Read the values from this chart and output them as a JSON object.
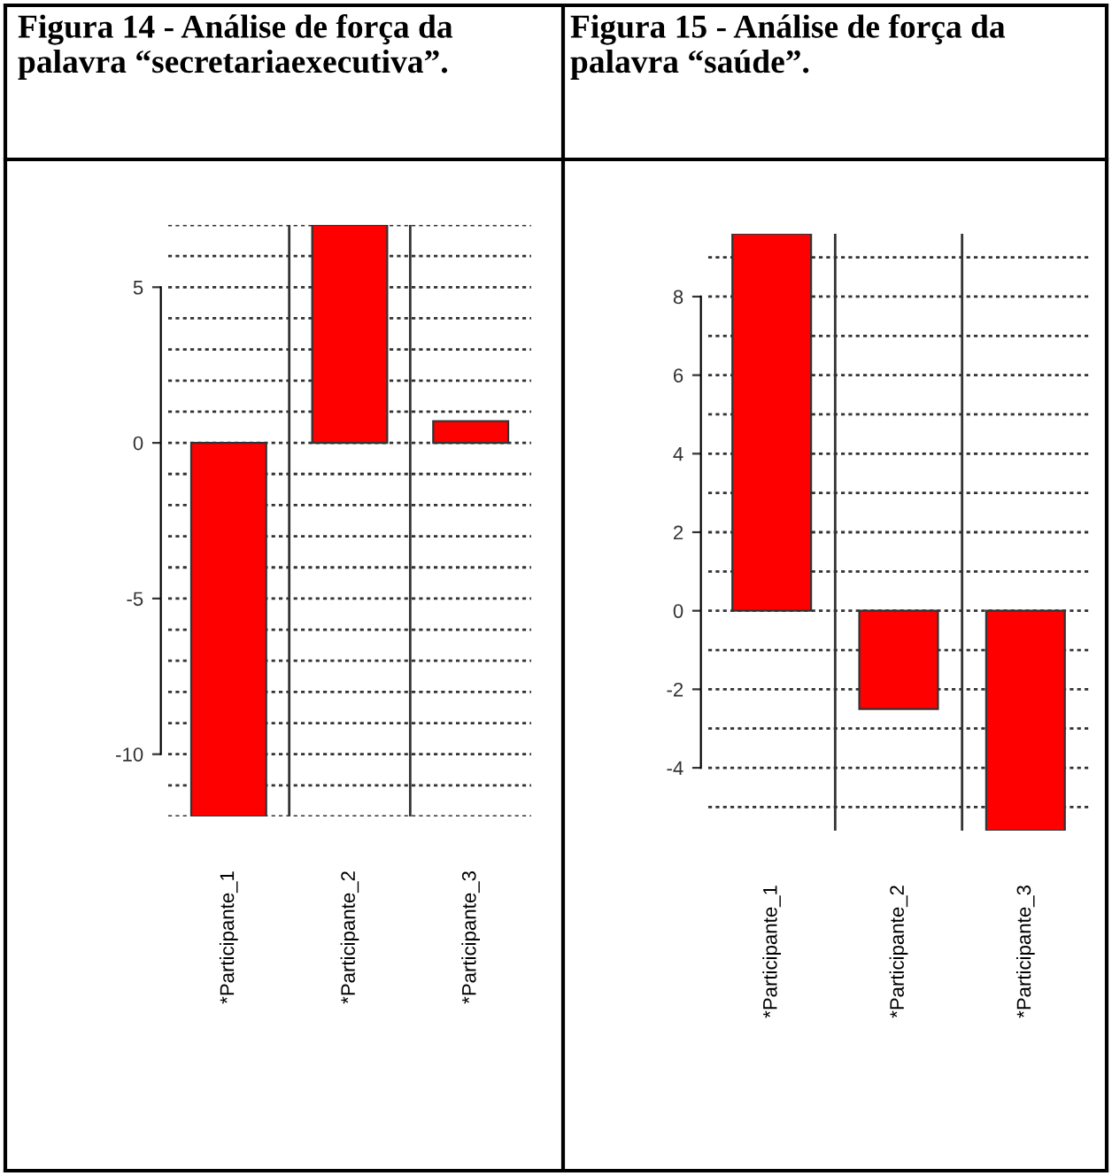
{
  "chart_data": [
    {
      "type": "bar",
      "title": "Figura 14 - Análise de força da palavra “secretariaexecutiva”.",
      "categories": [
        "*Participante_1",
        "*Participante_2",
        "*Participante_3"
      ],
      "values": [
        -12,
        7,
        0.7
      ],
      "color": "#ff0000",
      "ylim": [
        -12,
        7
      ],
      "yticks": [
        -10,
        -5,
        0,
        5
      ],
      "grid": true
    },
    {
      "type": "bar",
      "title": "Figura 15 - Análise de força da palavra “saúde”.",
      "categories": [
        "*Participante_1",
        "*Participante_2",
        "*Participante_3"
      ],
      "values": [
        9.6,
        -2.5,
        -5.6
      ],
      "color": "#ff0000",
      "ylim": [
        -5.6,
        9.6
      ],
      "yticks": [
        -4,
        -2,
        0,
        2,
        4,
        6,
        8
      ],
      "grid": true
    }
  ]
}
